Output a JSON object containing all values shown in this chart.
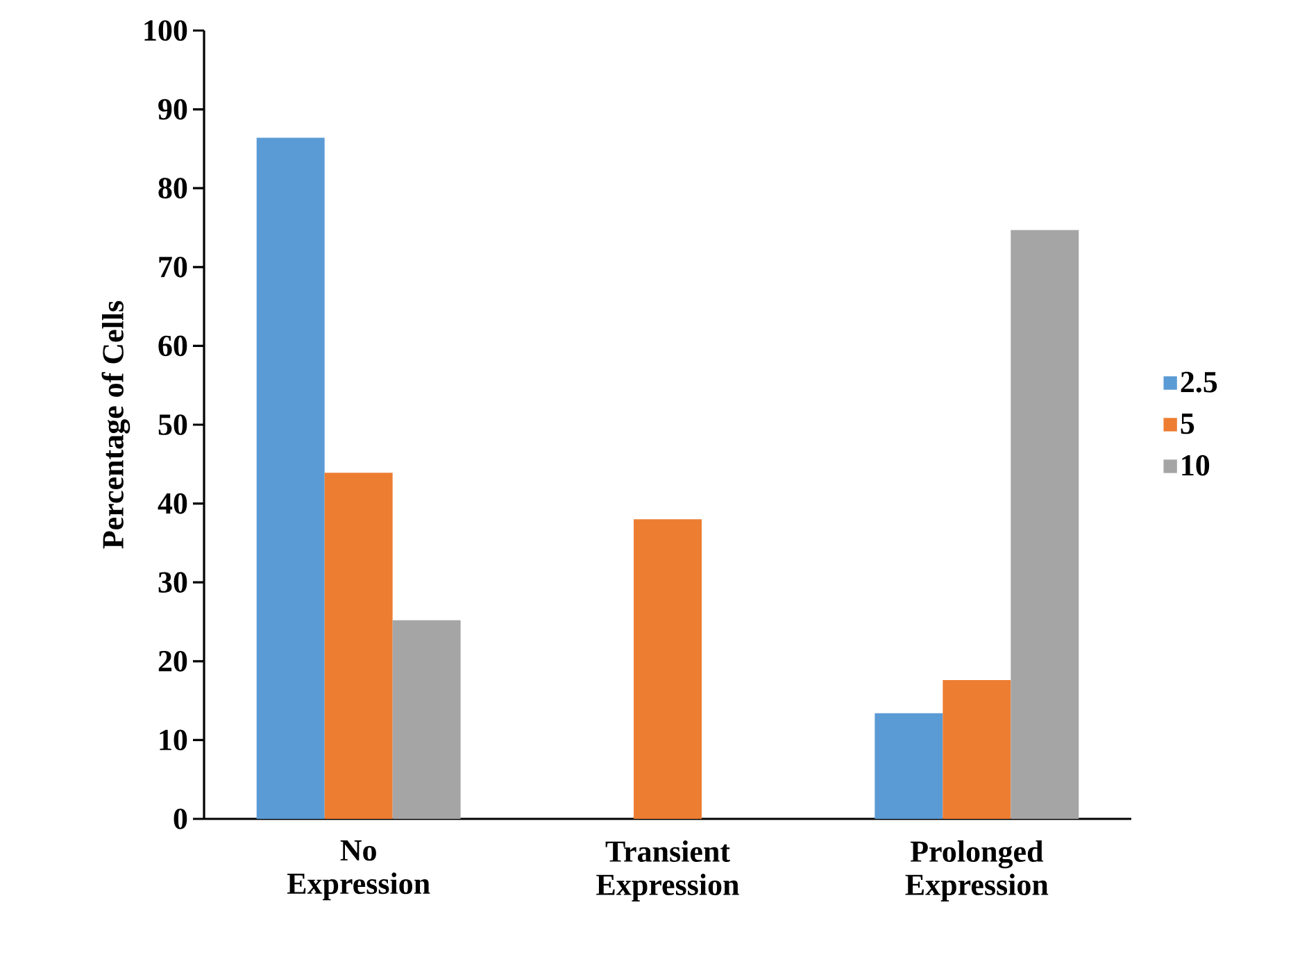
{
  "chart_data": {
    "type": "bar",
    "ylabel": "Percentage of Cells",
    "categories": [
      "No Expression",
      "Transient Expression",
      "Prolonged Expression"
    ],
    "series": [
      {
        "name": "2.5",
        "color": "#5b9bd5",
        "values": [
          86.4,
          0,
          13.4
        ]
      },
      {
        "name": "5",
        "color": "#ed7d31",
        "values": [
          43.9,
          38.0,
          17.6
        ]
      },
      {
        "name": "10",
        "color": "#a5a5a5",
        "values": [
          25.2,
          0,
          74.7
        ]
      }
    ],
    "ylim": [
      0,
      100
    ],
    "yticks": [
      0,
      10,
      20,
      30,
      40,
      50,
      60,
      70,
      80,
      90,
      100
    ],
    "grid": false,
    "legend": "right"
  }
}
